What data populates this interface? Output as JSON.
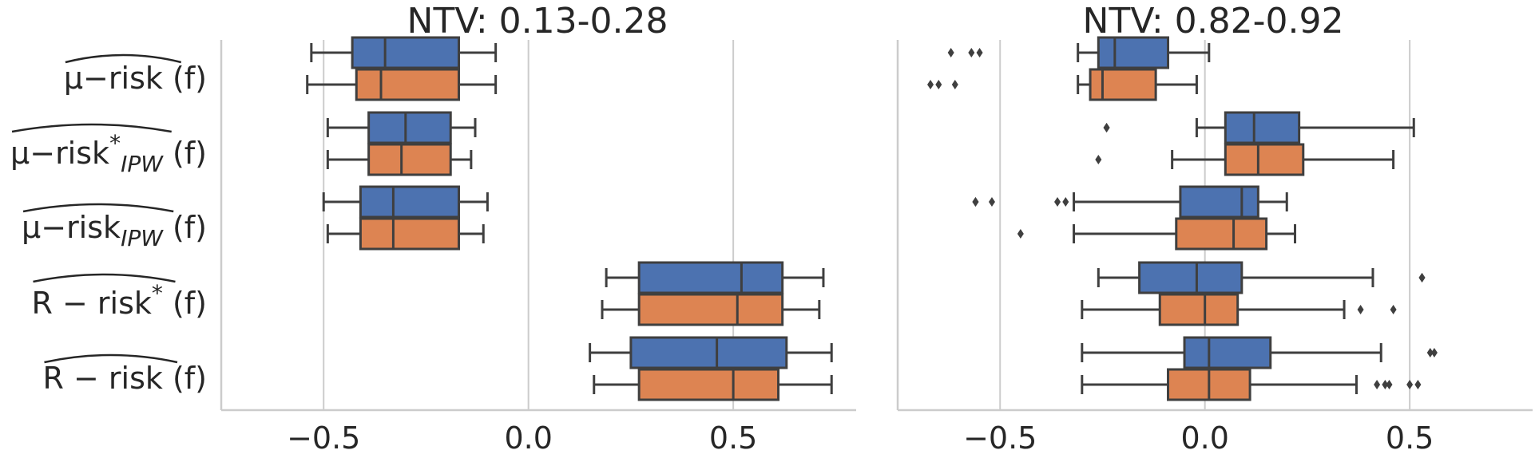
{
  "chart_data": [
    {
      "type": "boxplot",
      "title": "NTV: 0.13-0.28",
      "xlim": [
        -0.75,
        0.8
      ],
      "xticks": [
        -0.5,
        0.0,
        0.5
      ],
      "xtick_labels": [
        "−0.5",
        "0.0",
        "0.5"
      ],
      "grid": "vertical",
      "categories": [
        {
          "main": "μ−risk",
          "sup": "",
          "sub": "",
          "tail": "(f)"
        },
        {
          "main": "μ−risk",
          "sup": "*",
          "sub": "IPW",
          "tail": "(f)"
        },
        {
          "main": "μ−risk",
          "sup": "",
          "sub": "IPW",
          "tail": "(f)"
        },
        {
          "main": "R − risk",
          "sup": "*",
          "sub": "",
          "tail": "(f)"
        },
        {
          "main": "R − risk",
          "sup": "",
          "sub": "",
          "tail": "(f)"
        }
      ],
      "series": [
        {
          "color": "#4c72b0",
          "boxes": [
            {
              "whislo": -0.53,
              "q1": -0.43,
              "med": -0.35,
              "q3": -0.17,
              "whishi": -0.08,
              "fliers": []
            },
            {
              "whislo": -0.49,
              "q1": -0.39,
              "med": -0.3,
              "q3": -0.19,
              "whishi": -0.13,
              "fliers": []
            },
            {
              "whislo": -0.5,
              "q1": -0.41,
              "med": -0.33,
              "q3": -0.17,
              "whishi": -0.1,
              "fliers": []
            },
            {
              "whislo": 0.19,
              "q1": 0.27,
              "med": 0.52,
              "q3": 0.62,
              "whishi": 0.72,
              "fliers": []
            },
            {
              "whislo": 0.15,
              "q1": 0.25,
              "med": 0.46,
              "q3": 0.63,
              "whishi": 0.74,
              "fliers": []
            }
          ]
        },
        {
          "color": "#dd8452",
          "boxes": [
            {
              "whislo": -0.54,
              "q1": -0.42,
              "med": -0.36,
              "q3": -0.17,
              "whishi": -0.08,
              "fliers": []
            },
            {
              "whislo": -0.49,
              "q1": -0.39,
              "med": -0.31,
              "q3": -0.19,
              "whishi": -0.14,
              "fliers": []
            },
            {
              "whislo": -0.49,
              "q1": -0.41,
              "med": -0.33,
              "q3": -0.17,
              "whishi": -0.11,
              "fliers": []
            },
            {
              "whislo": 0.18,
              "q1": 0.27,
              "med": 0.51,
              "q3": 0.62,
              "whishi": 0.71,
              "fliers": []
            },
            {
              "whislo": 0.16,
              "q1": 0.27,
              "med": 0.5,
              "q3": 0.61,
              "whishi": 0.74,
              "fliers": []
            }
          ]
        }
      ]
    },
    {
      "type": "boxplot",
      "title": "NTV: 0.82-0.92",
      "xlim": [
        -0.75,
        0.8
      ],
      "xticks": [
        -0.5,
        0.0,
        0.5
      ],
      "xtick_labels": [
        "−0.5",
        "0.0",
        "0.5"
      ],
      "grid": "vertical",
      "categories": [],
      "series": [
        {
          "color": "#4c72b0",
          "boxes": [
            {
              "whislo": -0.31,
              "q1": -0.26,
              "med": -0.22,
              "q3": -0.09,
              "whishi": 0.01,
              "fliers": [
                -0.62,
                -0.57,
                -0.55
              ]
            },
            {
              "whislo": -0.02,
              "q1": 0.05,
              "med": 0.12,
              "q3": 0.23,
              "whishi": 0.51,
              "fliers": [
                -0.24,
                -0.24
              ]
            },
            {
              "whislo": -0.32,
              "q1": -0.06,
              "med": 0.09,
              "q3": 0.13,
              "whishi": 0.2,
              "fliers": [
                -0.56,
                -0.56,
                -0.52,
                -0.36,
                -0.34
              ]
            },
            {
              "whislo": -0.26,
              "q1": -0.16,
              "med": -0.02,
              "q3": 0.09,
              "whishi": 0.41,
              "fliers": [
                0.53,
                0.53
              ]
            },
            {
              "whislo": -0.3,
              "q1": -0.05,
              "med": 0.01,
              "q3": 0.16,
              "whishi": 0.43,
              "fliers": [
                0.55,
                0.56
              ]
            }
          ]
        },
        {
          "color": "#dd8452",
          "boxes": [
            {
              "whislo": -0.31,
              "q1": -0.28,
              "med": -0.25,
              "q3": -0.12,
              "whishi": -0.02,
              "fliers": [
                -0.67,
                -0.65,
                -0.61
              ]
            },
            {
              "whislo": -0.08,
              "q1": 0.05,
              "med": 0.13,
              "q3": 0.24,
              "whishi": 0.46,
              "fliers": [
                -0.26
              ]
            },
            {
              "whislo": -0.32,
              "q1": -0.07,
              "med": 0.07,
              "q3": 0.15,
              "whishi": 0.22,
              "fliers": [
                -0.45
              ]
            },
            {
              "whislo": -0.3,
              "q1": -0.11,
              "med": 0.0,
              "q3": 0.08,
              "whishi": 0.34,
              "fliers": [
                0.38,
                0.46
              ]
            },
            {
              "whislo": -0.3,
              "q1": -0.09,
              "med": 0.01,
              "q3": 0.11,
              "whishi": 0.37,
              "fliers": [
                0.42,
                0.44,
                0.45,
                0.5,
                0.52
              ]
            }
          ]
        }
      ]
    }
  ]
}
